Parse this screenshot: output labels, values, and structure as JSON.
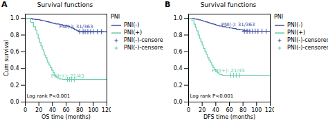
{
  "chart_data": [
    {
      "type": "line",
      "panel_label": "A",
      "title": "Survival functions",
      "xlabel": "OS time (months)",
      "ylabel": "Cum survival",
      "xlim": [
        0,
        120
      ],
      "ylim": [
        0.0,
        1.05
      ],
      "xticks": [
        0,
        20,
        40,
        60,
        80,
        100,
        120
      ],
      "yticks": [
        {
          "value": 0.0,
          "label": "0.0"
        },
        0.2,
        0.4,
        0.6,
        0.8,
        {
          "value": 1.0,
          "label": "1.0"
        }
      ],
      "legend_title": "PNI",
      "series": [
        {
          "name": "PNI(-)",
          "type": "step",
          "color": "#3B4D9E",
          "x": [
            0,
            10,
            15,
            20,
            22,
            25,
            28,
            30,
            32,
            35,
            38,
            40,
            42,
            45,
            50,
            55,
            60,
            62,
            65,
            68,
            70,
            72,
            75,
            78,
            80,
            120
          ],
          "values": [
            1.0,
            0.99,
            0.986,
            0.982,
            0.978,
            0.972,
            0.968,
            0.963,
            0.958,
            0.952,
            0.946,
            0.942,
            0.938,
            0.932,
            0.925,
            0.918,
            0.91,
            0.905,
            0.895,
            0.888,
            0.878,
            0.865,
            0.855,
            0.845,
            0.84,
            0.84
          ]
        },
        {
          "name": "PNI(+)",
          "type": "step",
          "color": "#66CDAA",
          "x": [
            0,
            8,
            12,
            15,
            17,
            19,
            21,
            23,
            25,
            27,
            28,
            30,
            32,
            33,
            35,
            37,
            39,
            41,
            43,
            45,
            47,
            50,
            55,
            60,
            65,
            120
          ],
          "values": [
            1.0,
            0.95,
            0.9,
            0.86,
            0.81,
            0.76,
            0.71,
            0.67,
            0.63,
            0.6,
            0.56,
            0.53,
            0.5,
            0.47,
            0.44,
            0.41,
            0.38,
            0.35,
            0.32,
            0.3,
            0.285,
            0.275,
            0.27,
            0.27,
            0.27,
            0.27
          ]
        },
        {
          "name": "PNI(-)-censored",
          "type": "scatter",
          "marker": "plus",
          "color": "#3B4D9E",
          "x": [
            80,
            85,
            88,
            92,
            96,
            100,
            106,
            112
          ],
          "values": [
            0.84,
            0.84,
            0.84,
            0.84,
            0.84,
            0.84,
            0.84,
            0.84
          ]
        },
        {
          "name": "PNI(-)-censored",
          "type": "scatter",
          "marker": "plus",
          "color": "#66CDAA",
          "x": [
            62,
            65,
            68,
            72
          ],
          "values": [
            0.27,
            0.27,
            0.27,
            0.27
          ]
        }
      ],
      "annotations": [
        {
          "text": "PNI(-): 31/363",
          "x": 50,
          "y": 0.885,
          "color": "#3B4D9E"
        },
        {
          "text": "PNI(+): 21/43",
          "x": 38,
          "y": 0.295,
          "color": "#66CDAA"
        },
        {
          "text": "Log rank P<0.001",
          "x": 2,
          "y": 0.05,
          "color": "black"
        }
      ]
    },
    {
      "type": "line",
      "panel_label": "B",
      "title": "Survival functions",
      "xlabel": "DFS time (months)",
      "xlim": [
        0,
        120
      ],
      "ylim": [
        0.0,
        1.05
      ],
      "xticks": [
        0,
        20,
        40,
        60,
        80,
        100,
        120
      ],
      "yticks": [
        {
          "value": 0.0,
          "label": "0.0"
        },
        0.2,
        0.4,
        0.6,
        0.8,
        {
          "value": 1.0,
          "label": "1.0"
        }
      ],
      "legend_title": "PNI",
      "series": [
        {
          "name": "PNI(-)",
          "type": "step",
          "color": "#3B4D9E",
          "x": [
            0,
            8,
            12,
            15,
            18,
            20,
            22,
            25,
            28,
            30,
            32,
            35,
            38,
            40,
            42,
            45,
            50,
            55,
            60,
            65,
            70,
            75,
            80,
            85,
            90,
            120
          ],
          "values": [
            1.0,
            0.992,
            0.987,
            0.982,
            0.976,
            0.97,
            0.964,
            0.957,
            0.95,
            0.944,
            0.939,
            0.932,
            0.926,
            0.92,
            0.914,
            0.908,
            0.9,
            0.892,
            0.884,
            0.876,
            0.869,
            0.862,
            0.855,
            0.849,
            0.845,
            0.845
          ]
        },
        {
          "name": "PNI(+)",
          "type": "step",
          "color": "#66CDAA",
          "x": [
            0,
            5,
            8,
            10,
            12,
            14,
            16,
            18,
            20,
            22,
            24,
            26,
            28,
            30,
            32,
            34,
            36,
            38,
            40,
            42,
            45,
            48,
            50,
            55,
            60,
            65,
            120
          ],
          "values": [
            1.0,
            0.97,
            0.93,
            0.89,
            0.85,
            0.8,
            0.76,
            0.72,
            0.68,
            0.64,
            0.6,
            0.57,
            0.53,
            0.5,
            0.47,
            0.44,
            0.41,
            0.39,
            0.37,
            0.35,
            0.33,
            0.325,
            0.32,
            0.32,
            0.32,
            0.32,
            0.32
          ]
        },
        {
          "name": "PNI(-)-censored",
          "type": "scatter",
          "marker": "plus",
          "color": "#3B4D9E",
          "x": [
            82,
            86,
            90,
            94,
            98,
            102,
            108,
            114
          ],
          "values": [
            0.845,
            0.845,
            0.845,
            0.845,
            0.845,
            0.845,
            0.845,
            0.845
          ]
        },
        {
          "name": "PNI(-)-censored",
          "type": "scatter",
          "marker": "plus",
          "color": "#66CDAA",
          "x": [
            62,
            66,
            70,
            75
          ],
          "values": [
            0.32,
            0.32,
            0.32,
            0.32
          ]
        }
      ],
      "annotations": [
        {
          "text": "PNI(-): 31/363",
          "x": 48,
          "y": 0.91,
          "color": "#3B4D9E"
        },
        {
          "text": "PNI(+): 21/43",
          "x": 34,
          "y": 0.36,
          "color": "#66CDAA"
        },
        {
          "text": "Log rank P<0.001",
          "x": 2,
          "y": 0.05,
          "color": "black"
        }
      ]
    }
  ]
}
